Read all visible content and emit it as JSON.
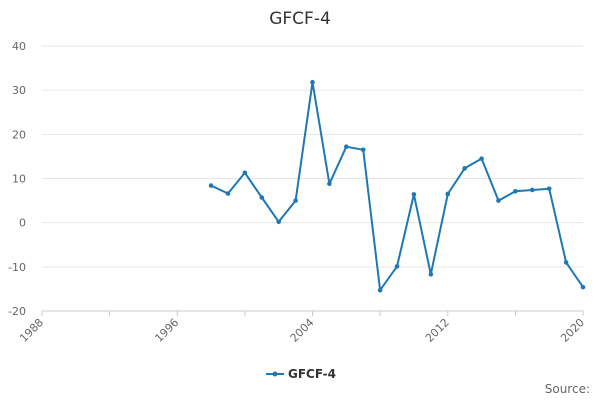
{
  "chart_data": {
    "type": "line",
    "title": "GFCF-4",
    "xlabel": "",
    "ylabel": "",
    "xlim": [
      1988,
      2020
    ],
    "ylim": [
      -20,
      40
    ],
    "x_ticks": [
      1988,
      1992,
      1996,
      2000,
      2004,
      2008,
      2012,
      2016,
      2020
    ],
    "x_tick_labels": [
      "1988",
      "",
      "1996",
      "",
      "2004",
      "",
      "2012",
      "",
      "2020"
    ],
    "y_ticks": [
      -20,
      -10,
      0,
      10,
      20,
      30,
      40
    ],
    "y_tick_labels": [
      "-20",
      "-10",
      "0",
      "10",
      "20",
      "30",
      "40"
    ],
    "grid": "horizontal",
    "legend": "bottom-center",
    "series": [
      {
        "name": "GFCF-4",
        "color": "#1f78b4",
        "x": [
          1998,
          1999,
          2000,
          2001,
          2002,
          2003,
          2004,
          2005,
          2006,
          2007,
          2008,
          2009,
          2010,
          2011,
          2012,
          2013,
          2014,
          2015,
          2016,
          2017,
          2018,
          2019,
          2020
        ],
        "values": [
          8.4,
          6.6,
          11.3,
          5.7,
          0.2,
          5.0,
          31.8,
          8.8,
          17.2,
          16.5,
          -15.3,
          -9.9,
          6.4,
          -11.7,
          6.5,
          12.3,
          14.5,
          5.0,
          7.1,
          7.4,
          7.7,
          -9.0,
          -14.6
        ]
      }
    ],
    "source_label": "Source:"
  }
}
